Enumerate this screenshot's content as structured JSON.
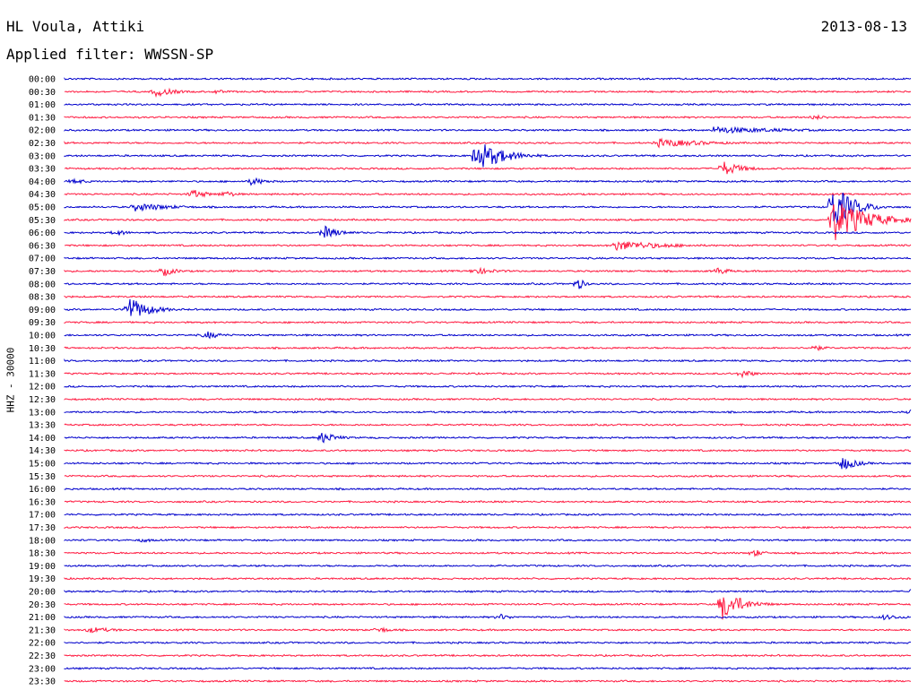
{
  "header": {
    "station": "HL Voula, Attiki",
    "date": "2013-08-13",
    "filter": "Applied filter: WWSSN-SP"
  },
  "chart_data": {
    "type": "line",
    "chart_kind": "helicorder",
    "ylabel": "HHZ - 30000",
    "row_labels": [
      "00:00",
      "00:30",
      "01:00",
      "01:30",
      "02:00",
      "02:30",
      "03:00",
      "03:30",
      "04:00",
      "04:30",
      "05:00",
      "05:30",
      "06:00",
      "06:30",
      "07:00",
      "07:30",
      "08:00",
      "08:30",
      "09:00",
      "09:30",
      "10:00",
      "10:30",
      "11:00",
      "11:30",
      "12:00",
      "12:30",
      "13:00",
      "13:30",
      "14:00",
      "14:30",
      "15:00",
      "15:30",
      "16:00",
      "16:30",
      "17:00",
      "17:30",
      "18:00",
      "18:30",
      "19:00",
      "19:30",
      "20:00",
      "20:30",
      "21:00",
      "21:30",
      "22:00",
      "22:30",
      "23:00",
      "23:30"
    ],
    "minutes_per_row": 30,
    "colors": [
      "#0000cc",
      "#ff1a40"
    ],
    "events": [
      {
        "row": 1,
        "minute": 3.2,
        "amplitude": 6,
        "duration": 1.5
      },
      {
        "row": 1,
        "minute": 5.3,
        "amplitude": 3,
        "duration": 1
      },
      {
        "row": 3,
        "minute": 26.5,
        "amplitude": 3,
        "duration": 1.5
      },
      {
        "row": 6,
        "minute": 14.6,
        "amplitude": 18,
        "duration": 2
      },
      {
        "row": 5,
        "minute": 21,
        "amplitude": 5,
        "duration": 4
      },
      {
        "row": 4,
        "minute": 23,
        "amplitude": 4,
        "duration": 6
      },
      {
        "row": 7,
        "minute": 23.3,
        "amplitude": 9,
        "duration": 1.5
      },
      {
        "row": 8,
        "minute": 0.3,
        "amplitude": 4,
        "duration": 1
      },
      {
        "row": 8,
        "minute": 6.6,
        "amplitude": 5,
        "duration": 1.2
      },
      {
        "row": 9,
        "minute": 4.5,
        "amplitude": 6,
        "duration": 1.2
      },
      {
        "row": 9,
        "minute": 5.6,
        "amplitude": 5,
        "duration": 1
      },
      {
        "row": 10,
        "minute": 27.2,
        "amplitude": 28,
        "duration": 1.5
      },
      {
        "row": 10,
        "minute": 2.5,
        "amplitude": 5,
        "duration": 3
      },
      {
        "row": 11,
        "minute": 27.2,
        "amplitude": 26,
        "duration": 2.5
      },
      {
        "row": 12,
        "minute": 9.2,
        "amplitude": 8,
        "duration": 1.2
      },
      {
        "row": 12,
        "minute": 1.8,
        "amplitude": 4,
        "duration": 1
      },
      {
        "row": 13,
        "minute": 19.5,
        "amplitude": 6,
        "duration": 4
      },
      {
        "row": 15,
        "minute": 3.5,
        "amplitude": 6,
        "duration": 1
      },
      {
        "row": 15,
        "minute": 23.1,
        "amplitude": 5,
        "duration": 1
      },
      {
        "row": 15,
        "minute": 14.5,
        "amplitude": 4,
        "duration": 2
      },
      {
        "row": 16,
        "minute": 18.2,
        "amplitude": 8,
        "duration": 0.5
      },
      {
        "row": 18,
        "minute": 2.2,
        "amplitude": 16,
        "duration": 1.5
      },
      {
        "row": 20,
        "minute": 5,
        "amplitude": 5,
        "duration": 1.2
      },
      {
        "row": 21,
        "minute": 26.5,
        "amplitude": 4,
        "duration": 1
      },
      {
        "row": 23,
        "minute": 24,
        "amplitude": 5,
        "duration": 1
      },
      {
        "row": 26,
        "minute": 30,
        "amplitude": 4,
        "duration": 1
      },
      {
        "row": 28,
        "minute": 9.1,
        "amplitude": 7,
        "duration": 1.2
      },
      {
        "row": 30,
        "minute": 27.5,
        "amplitude": 9,
        "duration": 1.2
      },
      {
        "row": 36,
        "minute": 2.7,
        "amplitude": 3,
        "duration": 1
      },
      {
        "row": 37,
        "minute": 24.4,
        "amplitude": 5,
        "duration": 0.8
      },
      {
        "row": 40,
        "minute": 30,
        "amplitude": 5,
        "duration": 1
      },
      {
        "row": 41,
        "minute": 23.3,
        "amplitude": 18,
        "duration": 1.5
      },
      {
        "row": 42,
        "minute": 15.4,
        "amplitude": 4,
        "duration": 1
      },
      {
        "row": 42,
        "minute": 29,
        "amplitude": 3,
        "duration": 2
      },
      {
        "row": 43,
        "minute": 0.8,
        "amplitude": 4,
        "duration": 2
      },
      {
        "row": 43,
        "minute": 11.1,
        "amplitude": 4,
        "duration": 1
      }
    ]
  }
}
